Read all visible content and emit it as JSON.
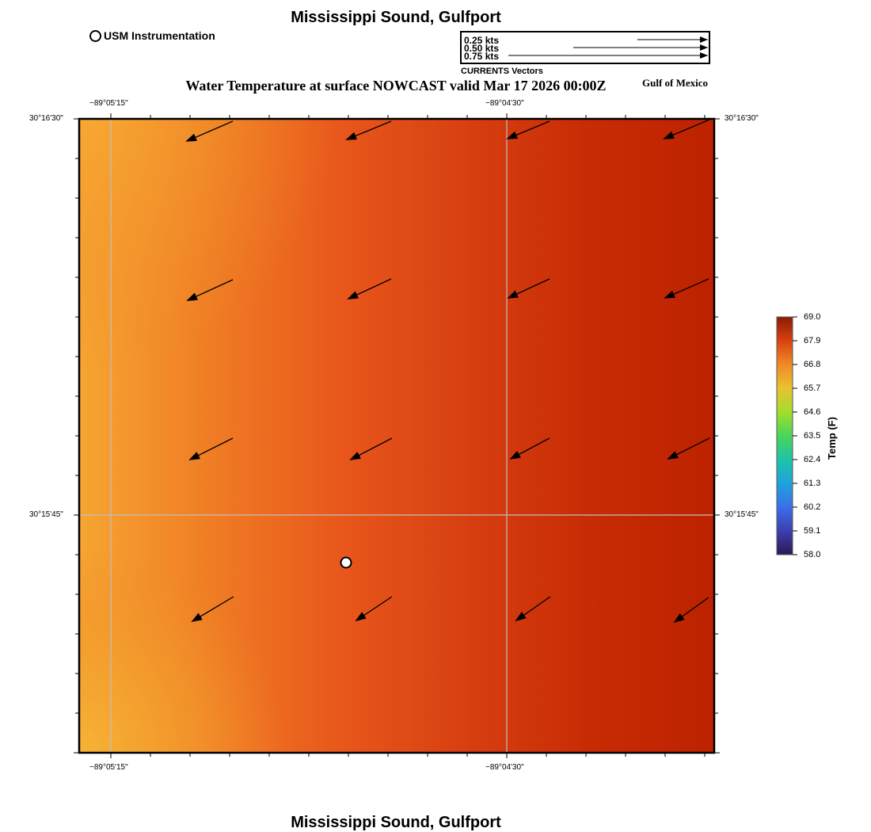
{
  "title": "Mississippi Sound, Gulfport",
  "footer_title": "Mississippi Sound, Gulfport",
  "legend": {
    "marker_label": "USM Instrumentation"
  },
  "current_scale": {
    "labels": [
      "0.25 kts",
      "0.50 kts",
      "0.75 kts"
    ],
    "title": "CURRENTS Vectors"
  },
  "map_title": "Water Temperature at surface NOWCAST valid Mar 17 2026 00:00Z",
  "region_label": "Gulf of Mexico",
  "axes": {
    "lon_ticks": [
      "−89°05'15\"",
      "−89°04'30\""
    ],
    "lat_ticks": [
      "30°16'30\"",
      "30°15'45\""
    ]
  },
  "colorbar": {
    "label": "Temp (F)",
    "ticks": [
      "69.0",
      "67.9",
      "66.8",
      "65.7",
      "64.6",
      "63.5",
      "62.4",
      "61.3",
      "60.2",
      "59.1",
      "58.0"
    ]
  },
  "colors": {
    "warm_low": "#f6a532",
    "mid": "#e8561b",
    "warm_high": "#bd2200",
    "grid": "#c0c0c0"
  }
}
